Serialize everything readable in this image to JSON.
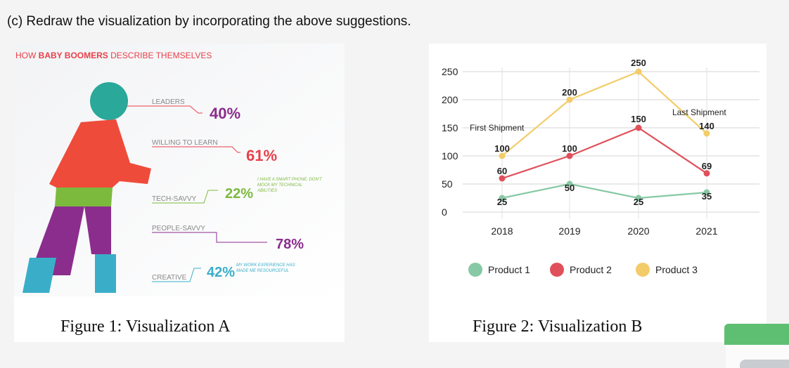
{
  "heading": "(c) Redraw the visualization by incorporating the above suggestions.",
  "figure_a": {
    "title_parts": [
      "HOW ",
      "BABY BOOMERS",
      " DESCRIBE THEMSELVES"
    ],
    "caption": "Figure 1: Visualization A",
    "rows": [
      {
        "label": "LEADERS",
        "value": "40%",
        "note": ""
      },
      {
        "label": "WILLING TO LEARN",
        "value": "61%",
        "note": ""
      },
      {
        "label": "TECH-SAVVY",
        "value": "22%",
        "note": "I HAVE A SMART PHONE, DON'T MOCK MY TECHNICAL ABILITIES"
      },
      {
        "label": "PEOPLE-SAVVY",
        "value": "78%",
        "note": ""
      },
      {
        "label": "CREATIVE",
        "value": "42%",
        "note": "MY WORK EXPERIENCE HAS MADE ME RESOURCEFUL"
      }
    ],
    "colors": {
      "head": "#2aa89a",
      "torso": "#ef4b3a",
      "waist": "#7cba3e",
      "legs": "#8b2d8d",
      "feet": "#3aaec8",
      "text": "#e8404a",
      "value": "#8b2d8d",
      "label": "#888888"
    }
  },
  "figure_b": {
    "caption": "Figure 2: Visualization B",
    "chart_data": {
      "type": "line",
      "x": [
        "2018",
        "2019",
        "2020",
        "2021"
      ],
      "yticks": [
        0,
        50,
        100,
        150,
        200,
        250
      ],
      "ylim": [
        0,
        250
      ],
      "series": [
        {
          "name": "Product 1",
          "color": "#86c9a4",
          "values": [
            25,
            50,
            25,
            35
          ]
        },
        {
          "name": "Product 2",
          "color": "#e0505a",
          "values": [
            60,
            100,
            150,
            69
          ]
        },
        {
          "name": "Product 3",
          "color": "#f3cc6a",
          "values": [
            100,
            200,
            250,
            140
          ]
        }
      ],
      "annotations": [
        "First Shipment",
        "Last Shipment"
      ],
      "legend": "bottom"
    }
  }
}
